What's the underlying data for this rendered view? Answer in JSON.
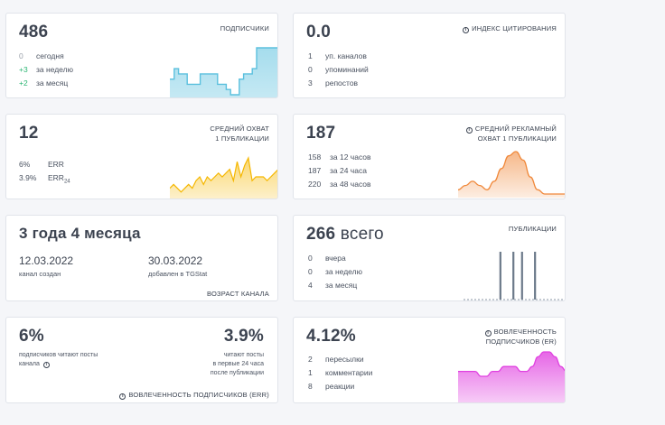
{
  "subscribers": {
    "value": "486",
    "title": "ПОДПИСЧИКИ",
    "rows": [
      {
        "num": "0",
        "label": "сегодня"
      },
      {
        "num": "+3",
        "label": "за неделю"
      },
      {
        "num": "+2",
        "label": "за месяц"
      }
    ],
    "color": "#5bc0de"
  },
  "citation": {
    "value": "0.0",
    "title": "ИНДЕКС ЦИТИРОВАНИЯ",
    "rows": [
      {
        "num": "1",
        "label": "уп. каналов"
      },
      {
        "num": "0",
        "label": "упоминаний"
      },
      {
        "num": "3",
        "label": "репостов"
      }
    ],
    "color": "#2bb673"
  },
  "reach": {
    "value": "12",
    "title_line1": "СРЕДНИЙ ОХВАТ",
    "title_line2": "1 ПУБЛИКАЦИИ",
    "err_value": "6%",
    "err_label": "ERR",
    "err24_value": "3.9%",
    "err24_label": "ERR",
    "err24_sub": "24",
    "color": "#f5b700"
  },
  "ad_reach": {
    "value": "187",
    "title_line1": "СРЕДНИЙ РЕКЛАМНЫЙ",
    "title_line2": "ОХВАТ 1 ПУБЛИКАЦИИ",
    "rows": [
      {
        "num": "158",
        "label": "за 12 часов"
      },
      {
        "num": "187",
        "label": "за 24 часа"
      },
      {
        "num": "220",
        "label": "за 48 часов"
      }
    ],
    "color": "#f0883a"
  },
  "age": {
    "value": "3 года 4 месяца",
    "created_date": "12.03.2022",
    "created_label": "канал создан",
    "added_date": "30.03.2022",
    "added_label": "добавлен в TGStat",
    "title": "ВОЗРАСТ КАНАЛА"
  },
  "publications": {
    "value": "266",
    "value_suffix": " всего",
    "title": "ПУБЛИКАЦИИ",
    "rows": [
      {
        "num": "0",
        "label": "вчера"
      },
      {
        "num": "0",
        "label": "за неделю"
      },
      {
        "num": "4",
        "label": "за месяц"
      }
    ],
    "color": "#6c7a8a"
  },
  "err": {
    "left_value": "6%",
    "left_text": "подписчиков читают посты канала",
    "right_value": "3.9%",
    "right_line1": "читают посты",
    "right_line2": "в первые 24 часа",
    "right_line3": "после публикации",
    "title": "ВОВЛЕЧЕННОСТЬ ПОДПИСЧИКОВ (ERR)"
  },
  "engagement": {
    "value": "4.12%",
    "title_line1": "ВОВЛЕЧЕННОСТЬ",
    "title_line2": "ПОДПИСЧИКОВ (ER)",
    "rows": [
      {
        "num": "2",
        "label": "пересылки"
      },
      {
        "num": "1",
        "label": "комментарии"
      },
      {
        "num": "8",
        "label": "реакции"
      }
    ],
    "color": "#e040e0"
  },
  "info_icon_glyph": "i",
  "chart_data": [
    {
      "type": "line",
      "name": "subscribers",
      "values": [
        3,
        5,
        4,
        4,
        2,
        2,
        2,
        4,
        4,
        4,
        4,
        2,
        2,
        1,
        0,
        0,
        3,
        4,
        4,
        5,
        9,
        9,
        9,
        9,
        9,
        9
      ]
    },
    {
      "type": "line",
      "name": "citation",
      "values": [
        0,
        0,
        0,
        0,
        0,
        0,
        0,
        0,
        0,
        0,
        0,
        0,
        0,
        0,
        0,
        0,
        0,
        0,
        0,
        0,
        0
      ]
    },
    {
      "type": "line",
      "name": "reach",
      "values": [
        2,
        3,
        2,
        1,
        2,
        3,
        2,
        4,
        5,
        3,
        5,
        4,
        5,
        6,
        5,
        6,
        7,
        4,
        9,
        5,
        8,
        10,
        4,
        5,
        5,
        5,
        4,
        5,
        6,
        7
      ]
    },
    {
      "type": "area",
      "name": "ad_reach",
      "values": [
        1,
        2,
        3,
        2,
        1,
        3,
        6,
        9,
        10,
        8,
        4,
        1,
        0,
        0,
        0,
        0
      ]
    },
    {
      "type": "bar",
      "name": "publications",
      "values": [
        0,
        0,
        0,
        0,
        0,
        0,
        0,
        0,
        1,
        0,
        0,
        1,
        0,
        1,
        0,
        0,
        1,
        0,
        0,
        0,
        0,
        0,
        0,
        0
      ]
    },
    {
      "type": "area",
      "name": "engagement",
      "values": [
        6,
        6,
        6,
        6,
        5,
        5,
        6,
        6,
        7,
        7,
        7,
        6,
        6,
        7,
        9,
        10,
        10,
        9,
        7,
        6
      ]
    }
  ]
}
